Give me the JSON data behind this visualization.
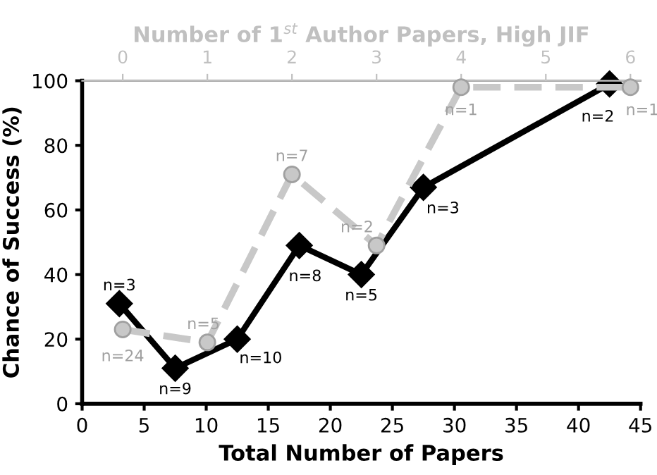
{
  "chart_data": {
    "type": "line",
    "xlabel": "Total Number of Papers",
    "ylabel": "Chance of Success (%)",
    "x2label": "Number of 1$^{st}$ Author Papers, High JIF",
    "xlim": [
      0,
      45
    ],
    "xticks": [
      0,
      5,
      10,
      15,
      20,
      25,
      30,
      35,
      40,
      45
    ],
    "ylim": [
      0,
      100
    ],
    "yticks": [
      0,
      20,
      40,
      60,
      80,
      100
    ],
    "x2lim": [
      -0.48,
      6.12
    ],
    "x2ticks": [
      0,
      1,
      2,
      3,
      4,
      5,
      6
    ],
    "grid": false,
    "legend": false,
    "series": [
      {
        "axis": "x2",
        "color": "#c8c8c8",
        "marker": "circle",
        "line_style": "dashed",
        "x": [
          0,
          1,
          2,
          3,
          4,
          6
        ],
        "values": [
          23,
          19,
          71,
          49,
          98,
          98
        ]
      },
      {
        "color": "#000000",
        "marker": "diamond",
        "line_style": "solid",
        "x": [
          3,
          7.5,
          12.5,
          17.5,
          22.5,
          27.5,
          42.5
        ],
        "values": [
          31,
          11,
          20,
          49,
          40,
          67,
          99
        ]
      }
    ],
    "annotations": [
      "n=24",
      "n=5",
      "n=7",
      "n=2",
      "n=1",
      "n=1",
      {
        "text": "n=3",
        "x": 3,
        "y": 31
      },
      {
        "text": "n=9",
        "x": 7.5,
        "y": 11
      },
      {
        "text": "n=10",
        "x": 12.5,
        "y": 20
      },
      {
        "text": "n=8",
        "x": 17.5,
        "y": 49
      },
      {
        "text": "n=5",
        "x": 22.5,
        "y": 40
      },
      {
        "text": "n=3",
        "x": 27.5,
        "y": 67
      },
      {
        "text": "n=2",
        "x": 42.5,
        "y": 99
      }
    ]
  }
}
